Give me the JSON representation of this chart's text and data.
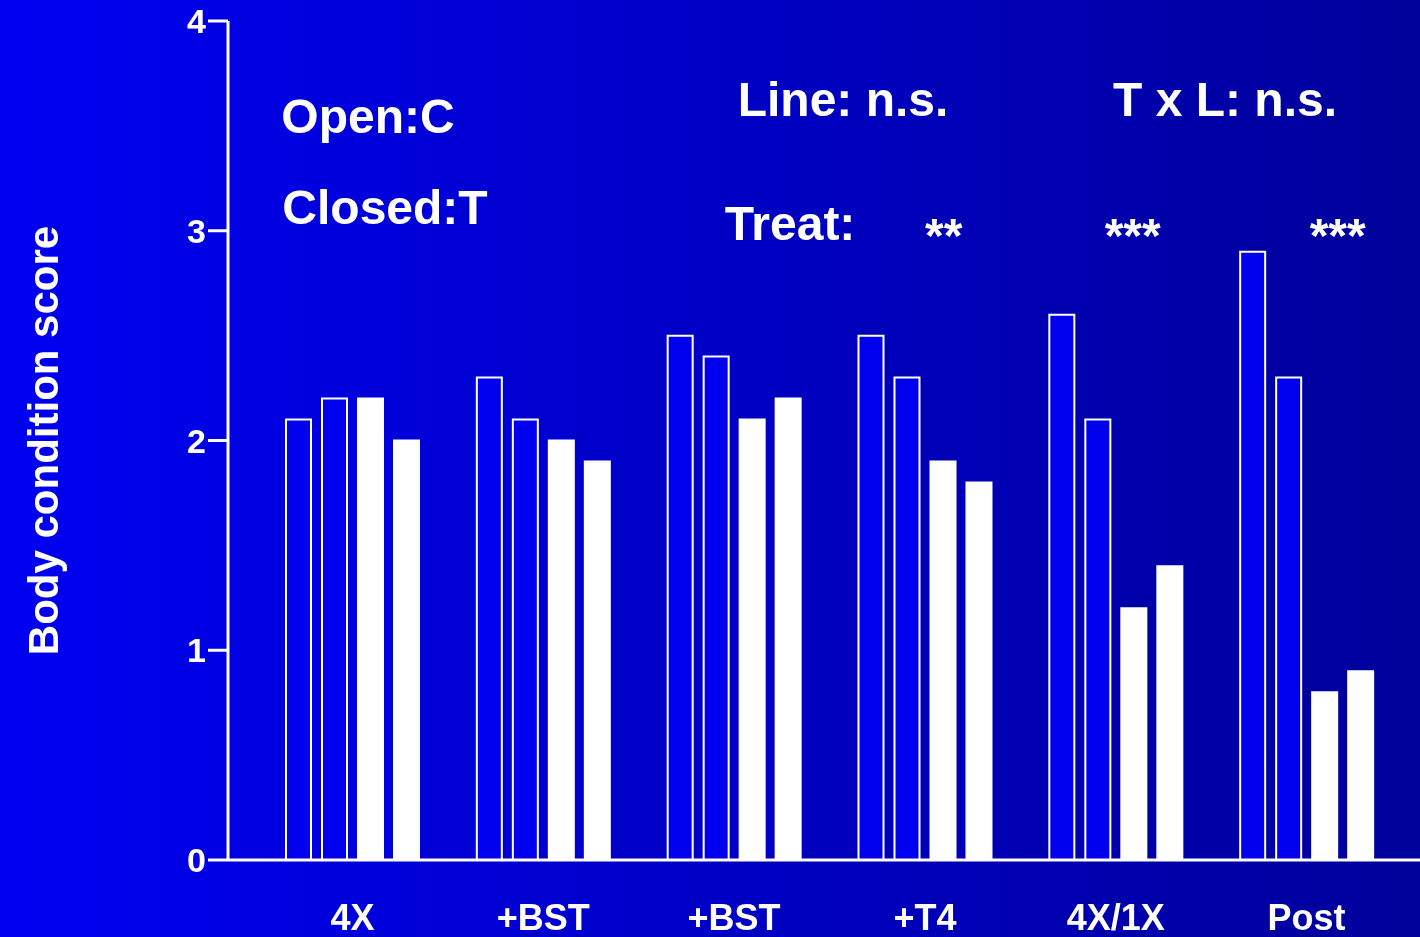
{
  "chart_data": {
    "type": "bar",
    "ylabel": "Body condition score",
    "categories": [
      "4X",
      "+BST",
      "+BST",
      "+T4",
      "4X/1X",
      "Post"
    ],
    "series": [
      {
        "color": "#0000ee",
        "values": [
          2.1,
          2.3,
          2.5,
          2.5,
          2.6,
          2.9
        ]
      },
      {
        "color": "#0000ee",
        "values": [
          2.2,
          2.1,
          2.4,
          2.3,
          2.1,
          2.3
        ]
      },
      {
        "color": "#ffffff",
        "values": [
          2.2,
          2.0,
          2.1,
          1.9,
          1.2,
          0.8
        ]
      },
      {
        "color": "#ffffff",
        "values": [
          2.0,
          1.9,
          2.2,
          1.8,
          1.4,
          0.9
        ]
      }
    ],
    "ylim": [
      0,
      4
    ],
    "yticks": [
      0,
      1,
      2,
      3,
      4
    ],
    "grid": false,
    "legend": false,
    "annotations": [
      "Open:C",
      "Closed:T",
      "Line: n.s.",
      "T x L: n.s.",
      "Treat: ** *** ***"
    ]
  }
}
